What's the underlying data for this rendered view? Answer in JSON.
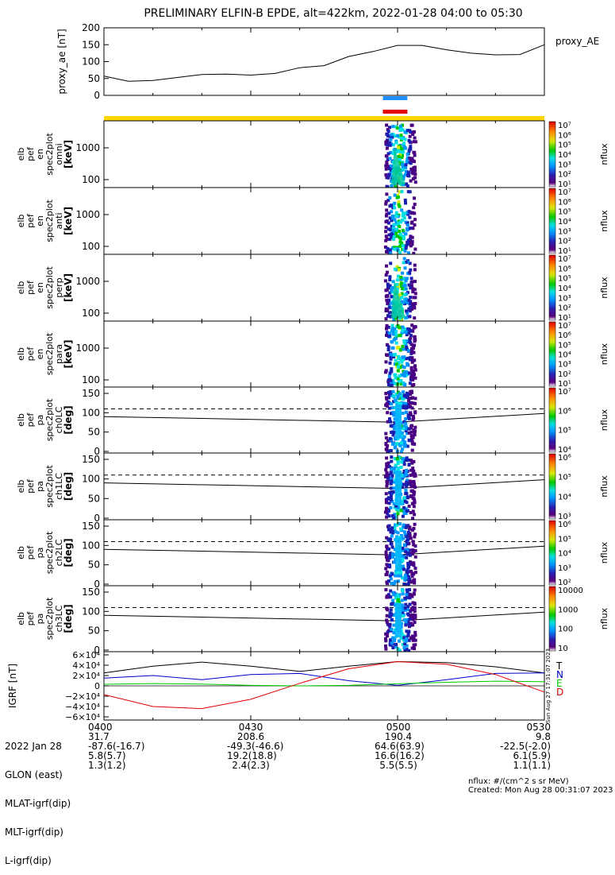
{
  "title": "PRELIMINARY ELFIN-B EPDE, alt=422km, 2022-01-28 04:00 to 05:30",
  "time_ticks": [
    "0400",
    "0430",
    "0500",
    "0530"
  ],
  "colors": {
    "science_zone_blue": "#1e90ff",
    "science_zone_red": "#e00000",
    "sun_bar": "#ffd700",
    "grf_N": "#0000cc",
    "grf_E": "#00cc00",
    "grf_D": "#e00000",
    "grf_T": "#000000"
  },
  "chart_data": [
    {
      "type": "line",
      "ylabel": "proxy_ae [nT]",
      "ylim": [
        0,
        200
      ],
      "y_ticks": [
        "200",
        "150",
        "100",
        "50",
        "0"
      ],
      "series": [
        {
          "name": "proxy_AE",
          "x": [
            "04:00",
            "04:05",
            "04:10",
            "04:15",
            "04:20",
            "04:25",
            "04:30",
            "04:35",
            "04:40",
            "04:45",
            "04:50",
            "04:55",
            "05:00",
            "05:05",
            "05:10",
            "05:15",
            "05:20",
            "05:25",
            "05:30"
          ],
          "values": [
            57,
            42,
            44,
            53,
            62,
            63,
            60,
            65,
            82,
            88,
            115,
            130,
            148,
            148,
            135,
            125,
            120,
            121,
            150
          ]
        }
      ]
    },
    {
      "type": "heatmap",
      "ylabel": "elb pef en spec2plot omni [keV]",
      "y_ticks": [
        "1000",
        "100"
      ],
      "colorbar_ticks": [
        "10^7",
        "10^6",
        "10^5",
        "10^4",
        "10^3",
        "10^2",
        "10^1"
      ],
      "colorbar_label": "nflux"
    },
    {
      "type": "heatmap",
      "ylabel": "elb pef en spec2plot anti [keV]",
      "y_ticks": [
        "1000",
        "100"
      ],
      "colorbar_ticks": [
        "10^7",
        "10^6",
        "10^5",
        "10^4",
        "10^3",
        "10^2",
        "10^1"
      ],
      "colorbar_label": "nflux"
    },
    {
      "type": "heatmap",
      "ylabel": "elb pef en spec2plot perp [keV]",
      "y_ticks": [
        "1000",
        "100"
      ],
      "colorbar_ticks": [
        "10^7",
        "10^6",
        "10^5",
        "10^4",
        "10^3",
        "10^2",
        "10^1"
      ],
      "colorbar_label": "nflux"
    },
    {
      "type": "heatmap",
      "ylabel": "elb pef en spec2plot para [keV]",
      "y_ticks": [
        "1000",
        "100"
      ],
      "colorbar_ticks": [
        "10^7",
        "10^6",
        "10^5",
        "10^4",
        "10^3",
        "10^2",
        "10^1"
      ],
      "colorbar_label": "nflux"
    },
    {
      "type": "heatmap",
      "ylabel": "elb pef pa spec2plot ch0LC [deg]",
      "y_ticks": [
        "150",
        "100",
        "50",
        "0"
      ],
      "colorbar_ticks": [
        "10^7",
        "10^6",
        "10^5",
        "10^4"
      ],
      "colorbar_label": "nflux"
    },
    {
      "type": "heatmap",
      "ylabel": "elb pef pa spec2plot ch1LC [deg]",
      "y_ticks": [
        "150",
        "100",
        "50",
        "0"
      ],
      "colorbar_ticks": [
        "10^6",
        "10^5",
        "10^4",
        "10^3"
      ],
      "colorbar_label": "nflux"
    },
    {
      "type": "heatmap",
      "ylabel": "elb pef pa spec2plot ch2LC [deg]",
      "y_ticks": [
        "150",
        "100",
        "50",
        "0"
      ],
      "colorbar_ticks": [
        "10^6",
        "10^5",
        "10^4",
        "10^3",
        "10^2"
      ],
      "colorbar_label": "nflux"
    },
    {
      "type": "heatmap",
      "ylabel": "elb pef pa spec2plot ch3LC [deg]",
      "y_ticks": [
        "150",
        "100",
        "50",
        "0"
      ],
      "colorbar_ticks": [
        "10000",
        "1000",
        "100",
        "10"
      ],
      "colorbar_label": "nflux"
    },
    {
      "type": "line",
      "ylabel": "IGRF [nT]",
      "ylim": [
        -60000,
        60000
      ],
      "y_ticks": [
        "6×10^4",
        "4×10^4",
        "2×10^4",
        "0",
        "−2×10^4",
        "−4×10^4",
        "−6×10^4"
      ],
      "legend": [
        "T",
        "N",
        "E",
        "D"
      ],
      "series": [
        {
          "name": "T",
          "x": [
            0,
            10,
            20,
            30,
            40,
            50,
            60,
            70,
            80,
            90
          ],
          "values": [
            25000,
            38000,
            46000,
            38000,
            28000,
            38000,
            47000,
            45000,
            37000,
            25000
          ]
        },
        {
          "name": "N",
          "x": [
            0,
            10,
            20,
            30,
            40,
            50,
            60,
            70,
            80,
            90
          ],
          "values": [
            15000,
            20000,
            12000,
            22000,
            24000,
            10000,
            1000,
            12000,
            24000,
            25000
          ]
        },
        {
          "name": "E",
          "x": [
            0,
            10,
            20,
            30,
            40,
            50,
            60,
            70,
            80,
            90
          ],
          "values": [
            3000,
            4500,
            3500,
            1000,
            0,
            1000,
            4000,
            7000,
            9000,
            8000
          ]
        },
        {
          "name": "D",
          "x": [
            0,
            10,
            20,
            30,
            40,
            50,
            60,
            70,
            80,
            90
          ],
          "values": [
            -17000,
            -40000,
            -44000,
            -26000,
            5000,
            33000,
            47000,
            42000,
            22000,
            -12000
          ]
        }
      ]
    }
  ],
  "grf_timestamp": "Sun Aug 27 17:31:07 2023",
  "ephemeris": {
    "rows": [
      {
        "label": "2022 Jan 28",
        "values": [
          "0400",
          "0430",
          "0500",
          "0530"
        ]
      },
      {
        "label": "GLON (east)",
        "values": [
          "31.7",
          "208.6",
          "190.4",
          "9.8"
        ]
      },
      {
        "label": "MLAT-igrf(dip)",
        "values": [
          "-87.6(-16.7)",
          "-49.3(-46.6)",
          "64.6(63.9)",
          "-22.5(-2.0)"
        ]
      },
      {
        "label": "MLT-igrf(dip)",
        "values": [
          "5.8(5.7)",
          "19.2(18.8)",
          "16.6(16.2)",
          "6.1(5.9)"
        ]
      },
      {
        "label": "L-igrf(dip)",
        "values": [
          "1.3(1.2)",
          "2.4(2.3)",
          "5.5(5.5)",
          "1.1(1.1)"
        ]
      }
    ]
  },
  "footer": {
    "units": "nflux: #/(cm^2 s sr MeV)",
    "created": "Created: Mon Aug 28 00:31:07 2023"
  }
}
